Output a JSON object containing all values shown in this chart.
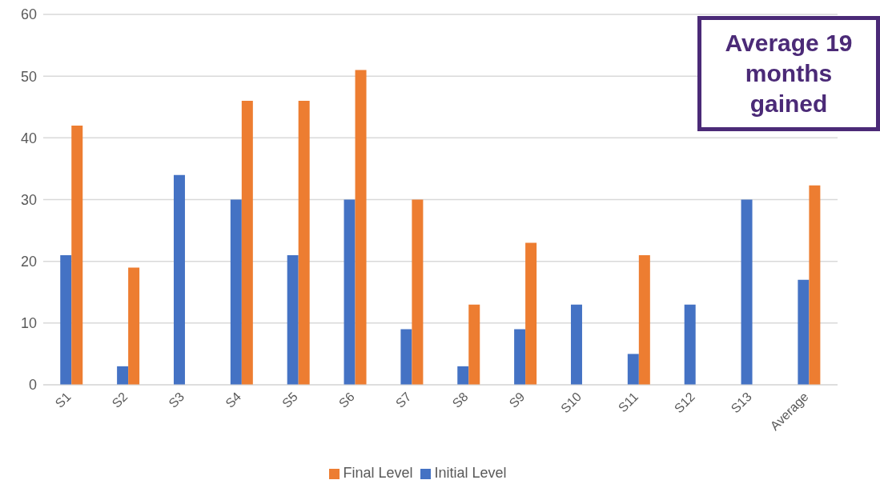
{
  "chart_data": {
    "type": "bar",
    "categories": [
      "S1",
      "S2",
      "S3",
      "S4",
      "S5",
      "S6",
      "S7",
      "S8",
      "S9",
      "S10",
      "S11",
      "S12",
      "S13",
      "Average"
    ],
    "series": [
      {
        "name": "Initial Level",
        "color": "#4472c4",
        "values": [
          21,
          3,
          34,
          30,
          21,
          30,
          9,
          3,
          9,
          13,
          5,
          13,
          30,
          17
        ]
      },
      {
        "name": "Final Level",
        "color": "#ed7d31",
        "values": [
          42,
          19,
          null,
          46,
          46,
          51,
          30,
          13,
          23,
          null,
          21,
          null,
          null,
          32.3
        ]
      }
    ],
    "ylim": [
      0,
      60
    ],
    "yticks": [
      0,
      10,
      20,
      30,
      40,
      50,
      60
    ],
    "grid": "y",
    "legend": "bottom",
    "annotations": [
      "Average 19 months gained"
    ]
  }
}
